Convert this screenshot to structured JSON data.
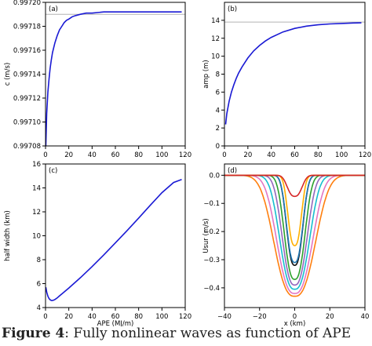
{
  "caption": {
    "bold": "Figure 4",
    "rest": ": Fully nonlinear waves as function of APE"
  },
  "chart_data": [
    {
      "type": "line",
      "panel_label": "(a)",
      "xlabel": "",
      "ylabel": "c (m/s)",
      "xlim": [
        0,
        120
      ],
      "ylim": [
        0.99708,
        0.9972
      ],
      "xticks": [
        0,
        20,
        40,
        60,
        80,
        100,
        120
      ],
      "yticks": [
        0.99708,
        0.9971,
        0.99712,
        0.99714,
        0.99716,
        0.99718,
        0.9972
      ],
      "ytick_labels": [
        "0.99708",
        "0.99710",
        "0.99712",
        "0.99714",
        "0.99716",
        "0.99718",
        "0.99720"
      ],
      "grid": false,
      "colors": {
        "series": "#1a1ad4",
        "reference": "#b4b4b4"
      },
      "reference_line": 0.99719,
      "series": [
        {
          "x": [
            0.3,
            1,
            2,
            3,
            4,
            5,
            6,
            8,
            10,
            12,
            14,
            16,
            18,
            20,
            23,
            26,
            30,
            35,
            40,
            50,
            60,
            80,
            100,
            117
          ],
          "y": [
            0.99708,
            0.997107,
            0.997125,
            0.997136,
            0.997145,
            0.997152,
            0.997158,
            0.997166,
            0.997172,
            0.997177,
            0.99718,
            0.997183,
            0.997185,
            0.997186,
            0.997188,
            0.997189,
            0.99719,
            0.997191,
            0.997191,
            0.997192,
            0.997192,
            0.997192,
            0.997192,
            0.997192
          ]
        }
      ]
    },
    {
      "type": "line",
      "panel_label": "(b)",
      "xlabel": "",
      "ylabel": "amp (m)",
      "xlim": [
        0,
        120
      ],
      "ylim": [
        0,
        16
      ],
      "xticks": [
        0,
        20,
        40,
        60,
        80,
        100,
        120
      ],
      "yticks": [
        0,
        2,
        4,
        6,
        8,
        10,
        12,
        14
      ],
      "grid": false,
      "colors": {
        "series": "#1a1ad4",
        "reference": "#b4b4b4"
      },
      "reference_line": 13.8,
      "series": [
        {
          "x": [
            1,
            2,
            4,
            6,
            8,
            10,
            12,
            15,
            20,
            25,
            30,
            35,
            40,
            50,
            60,
            70,
            80,
            90,
            100,
            110,
            117
          ],
          "y": [
            2.4,
            3.6,
            5.0,
            6.0,
            6.8,
            7.5,
            8.1,
            8.8,
            9.8,
            10.6,
            11.2,
            11.7,
            12.1,
            12.7,
            13.1,
            13.35,
            13.5,
            13.6,
            13.65,
            13.7,
            13.72
          ]
        }
      ]
    },
    {
      "type": "line",
      "panel_label": "(c)",
      "xlabel": "APE (MJ/m)",
      "ylabel": "half width (km)",
      "xlim": [
        0,
        120
      ],
      "ylim": [
        4,
        16
      ],
      "xticks": [
        0,
        20,
        40,
        60,
        80,
        100,
        120
      ],
      "yticks": [
        4,
        6,
        8,
        10,
        12,
        14,
        16
      ],
      "grid": false,
      "colors": {
        "series": "#1a1ad4"
      },
      "series": [
        {
          "x": [
            0.3,
            1,
            2,
            3,
            4,
            5,
            6,
            7,
            8,
            10,
            12,
            15,
            20,
            30,
            40,
            50,
            60,
            70,
            80,
            90,
            100,
            110,
            117
          ],
          "y": [
            5.7,
            5.3,
            4.95,
            4.75,
            4.65,
            4.6,
            4.6,
            4.62,
            4.67,
            4.8,
            4.98,
            5.22,
            5.63,
            6.5,
            7.42,
            8.4,
            9.4,
            10.42,
            11.48,
            12.55,
            13.6,
            14.45,
            14.7
          ]
        }
      ]
    },
    {
      "type": "line",
      "panel_label": "(d)",
      "xlabel": "x (km)",
      "ylabel": "Usur (m/s)",
      "xlim": [
        -40,
        40
      ],
      "ylim": [
        -0.47,
        0.04
      ],
      "xticks": [
        -40,
        -20,
        0,
        20,
        40
      ],
      "yticks": [
        0.0,
        -0.1,
        -0.2,
        -0.3,
        -0.4
      ],
      "ytick_labels": [
        "0.0",
        "−0.1",
        "−0.2",
        "−0.3",
        "−0.4"
      ],
      "grid": false,
      "series": [
        {
          "color": "#ff7f0e",
          "amplitude": -0.43,
          "half_width": 14.5
        },
        {
          "color": "#e377c2",
          "amplitude": -0.42,
          "half_width": 12.5
        },
        {
          "color": "#17becf",
          "amplitude": -0.405,
          "half_width": 10.5
        },
        {
          "color": "#9467bd",
          "amplitude": -0.39,
          "half_width": 8.8
        },
        {
          "color": "#2ca02c",
          "amplitude": -0.37,
          "half_width": 7.3
        },
        {
          "color": "#111111",
          "amplitude": -0.32,
          "half_width": 5.8
        },
        {
          "color": "#1f77b4",
          "amplitude": -0.31,
          "half_width": 5.8
        },
        {
          "color": "#ffb000",
          "amplitude": -0.25,
          "half_width": 4.8
        },
        {
          "color": "#d62728",
          "amplitude": -0.075,
          "half_width": 5.2
        }
      ]
    }
  ]
}
